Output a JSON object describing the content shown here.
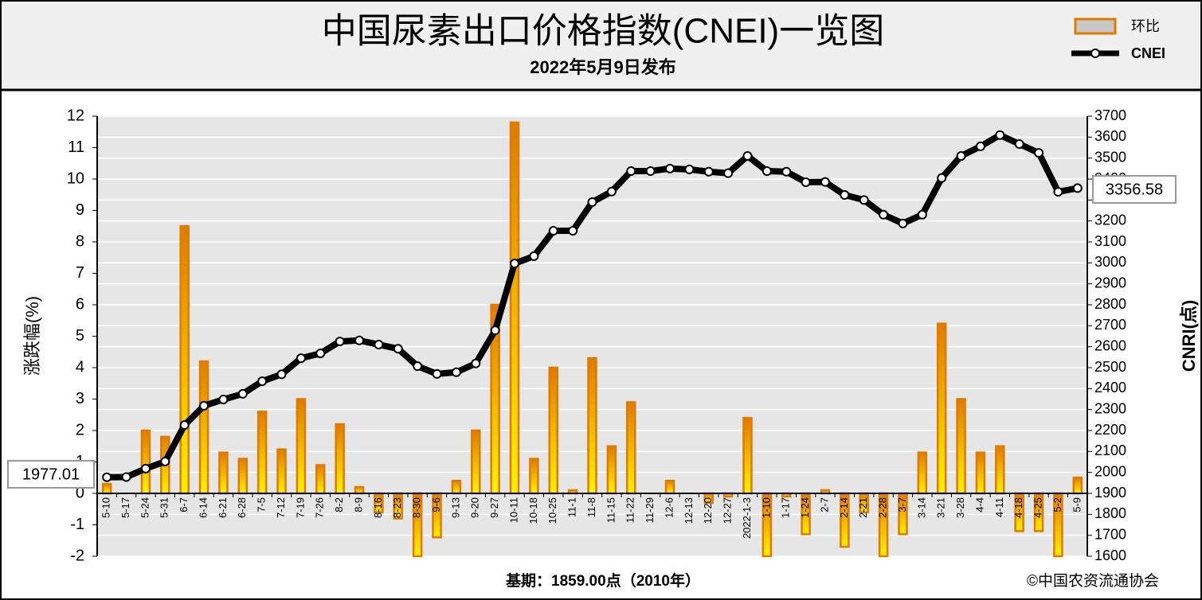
{
  "chart_data": {
    "type": "combo",
    "title": "中国尿素出口价格指数(CNEI)一览图",
    "subtitle": "2022年5月9日发布",
    "y_label": "涨跌幅(%)",
    "y2_label": "CNRI(点)",
    "footer_left": "基期：1859.00点（2010年）",
    "footer_right": "©中国农资流通协会",
    "categories": [
      "5-10",
      "5-17",
      "5-24",
      "5-31",
      "6-7",
      "6-14",
      "6-21",
      "6-28",
      "7-5",
      "7-12",
      "7-19",
      "7-26",
      "8-2",
      "8-9",
      "8-16",
      "8-23",
      "8-30",
      "9-6",
      "9-13",
      "9-20",
      "9-27",
      "10-11",
      "10-18",
      "10-25",
      "11-1",
      "11-8",
      "11-15",
      "11-22",
      "11-29",
      "12-6",
      "12-13",
      "12-20",
      "12-27",
      "2022-1-3",
      "1-10",
      "1-17",
      "1-24",
      "2-7",
      "2-14",
      "2-21",
      "2-28",
      "3-7",
      "3-14",
      "3-21",
      "3-28",
      "4-4",
      "4-11",
      "4-18",
      "4-25",
      "5-2",
      "5-9"
    ],
    "series": [
      {
        "name": "环比",
        "type": "bar",
        "color": "#e07b00",
        "values": [
          0.3,
          0,
          2.0,
          1.8,
          8.5,
          4.2,
          1.3,
          1.1,
          2.6,
          1.4,
          3.0,
          0.9,
          2.2,
          0.2,
          -0.6,
          -0.8,
          -2.0,
          -1.4,
          0.4,
          2.0,
          6.0,
          11.8,
          1.1,
          4.0,
          0.1,
          4.3,
          1.5,
          2.9,
          0,
          0.4,
          0,
          -0.3,
          -0.1,
          2.4,
          -2.0,
          -0.1,
          -1.3,
          0.1,
          -1.7,
          -0.6,
          -2.0,
          -1.3,
          1.3,
          5.4,
          3.0,
          1.3,
          1.5,
          -1.2,
          -1.2,
          -2.0,
          0.5
        ]
      },
      {
        "name": "CNEI",
        "type": "line",
        "axis": "y2",
        "color": "#000000",
        "values": [
          1977.01,
          1978,
          2018,
          2052,
          2226,
          2318,
          2348,
          2375,
          2435,
          2468,
          2545,
          2568,
          2625,
          2630,
          2610,
          2590,
          2507,
          2470,
          2478,
          2520,
          2678,
          2997,
          3032,
          3153,
          3153,
          3290,
          3340,
          3438,
          3438,
          3450,
          3446,
          3435,
          3428,
          3510,
          3438,
          3435,
          3385,
          3386,
          3324,
          3300,
          3230,
          3188,
          3230,
          3405,
          3510,
          3556,
          3610,
          3567,
          3525,
          3339,
          3356.58
        ]
      }
    ],
    "ylim": [
      -2,
      12
    ],
    "yticks": [
      -2,
      -1,
      0,
      1,
      2,
      3,
      4,
      5,
      6,
      7,
      8,
      9,
      10,
      11,
      12
    ],
    "y2lim": [
      1600,
      3700
    ],
    "y2ticks": [
      1600,
      1700,
      1800,
      1900,
      2000,
      2100,
      2200,
      2300,
      2400,
      2500,
      2600,
      2700,
      2800,
      2900,
      3000,
      3100,
      3200,
      3300,
      3400,
      3500,
      3600,
      3700
    ],
    "grid": true
  }
}
